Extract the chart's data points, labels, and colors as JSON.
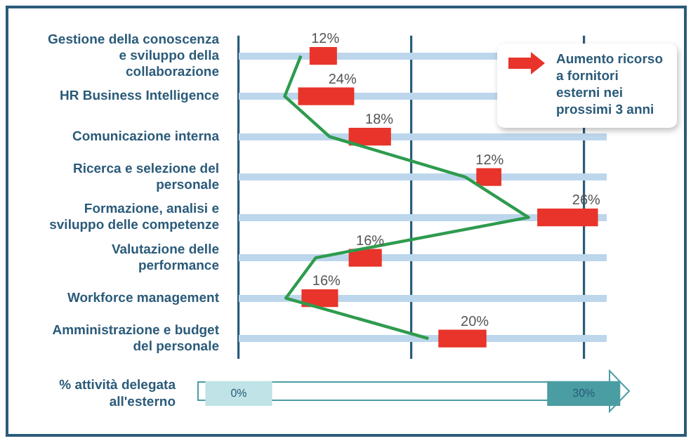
{
  "chart_data": {
    "type": "bar",
    "orientation": "horizontal",
    "categories": [
      "Gestione della conoscenza e sviluppo della collaborazione",
      "HR Business Intelligence",
      "Comunicazione interna",
      "Ricerca e selezione del personale",
      "Formazione, analisi e sviluppo delle competenze",
      "Valutazione delle performance",
      "Workforce management",
      "Amministrazione e budget del personale"
    ],
    "series": [
      {
        "type": "line",
        "color": "#2e9b4e",
        "values": [
          5.4,
          4.0,
          7.9,
          19.7,
          25.2,
          6.7,
          4.1,
          16.5
        ]
      },
      {
        "type": "bar",
        "name": "Aumento ricorso a fornitori esterni nei prossimi 3 anni",
        "color": "#e8342a",
        "base": [
          6.2,
          5.2,
          9.6,
          20.7,
          26.0,
          9.6,
          5.5,
          17.4
        ],
        "values": [
          2.3,
          4.8,
          3.6,
          2.1,
          5.2,
          2.8,
          3.1,
          4.1
        ]
      }
    ],
    "xlabel": "% attività delegata all'esterno",
    "xlim": [
      0,
      32
    ],
    "xticks": [
      {
        "value": 0,
        "label": "0%"
      },
      {
        "value": 15,
        "label": null
      },
      {
        "value": 30,
        "label": "30%"
      }
    ],
    "grid": true,
    "legend": "top right",
    "marker": "none",
    "annotations": [
      {
        "text": "12%",
        "x": 8.5,
        "y": "Gestione della conoscenza e sviluppo della collaborazione"
      },
      {
        "text": "24%",
        "x": 10.0,
        "y": "HR Business Intelligence"
      },
      {
        "text": "18%",
        "x": 13.2,
        "y": "Comunicazione interna"
      },
      {
        "text": "12%",
        "x": 22.8,
        "y": "Ricerca e selezione del personale"
      },
      {
        "text": "26%",
        "x": 31.2,
        "y": "Formazione, analisi e sviluppo delle competenze"
      },
      {
        "text": "16%",
        "x": 12.4,
        "y": "Valutazione delle performance"
      },
      {
        "text": "16%",
        "x": 8.6,
        "y": "Workforce management"
      },
      {
        "text": "20%",
        "x": 21.5,
        "y": "Amministrazione e budget del personale"
      }
    ]
  }
}
